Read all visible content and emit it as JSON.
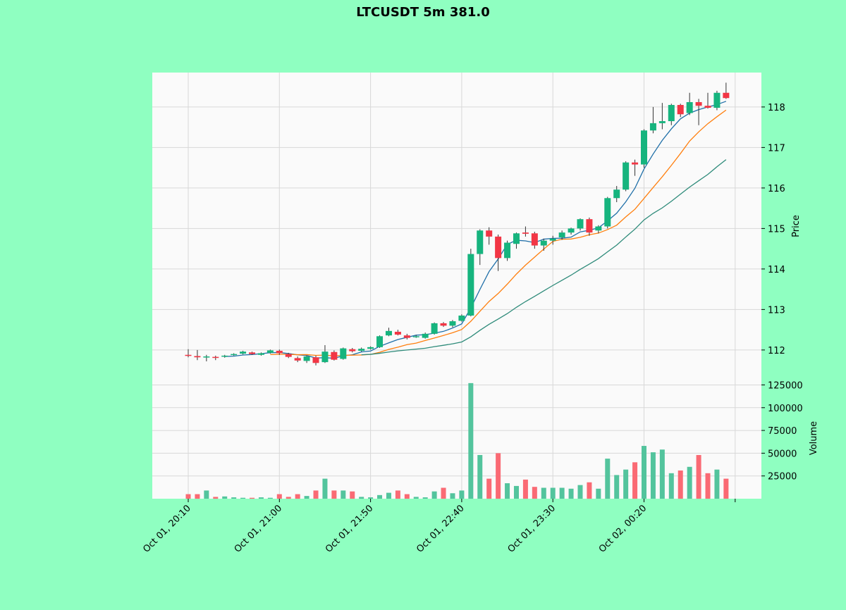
{
  "chart_data": {
    "type": "candlestick",
    "title": "LTCUSDT 5m 381.0",
    "ylabel": "Price",
    "ylabel_lower": "Volume",
    "ylim": [
      111.25,
      118.85
    ],
    "volume_ylim": [
      0,
      130000
    ],
    "grid": true,
    "colors": {
      "up": "#16b47e",
      "down": "#f23645",
      "up_volume": "#53c49d",
      "down_volume": "#fa6a74",
      "background": "#8fffc1",
      "plot_bg": "#fafafa",
      "mav": [
        "#1f6fa8",
        "#ff7f0e",
        "#2e8b7a"
      ]
    },
    "mav": [
      5,
      10,
      20
    ],
    "x_ticks": [
      {
        "index": 0,
        "label": "Oct 01, 20:10"
      },
      {
        "index": 10,
        "label": "Oct 01, 21:00"
      },
      {
        "index": 20,
        "label": "Oct 01, 21:50"
      },
      {
        "index": 30,
        "label": "Oct 01, 22:40"
      },
      {
        "index": 40,
        "label": "Oct 01, 23:30"
      },
      {
        "index": 50,
        "label": "Oct 02, 00:20"
      },
      {
        "index": 60,
        "label": ""
      }
    ],
    "y_ticks": [
      "112",
      "113",
      "114",
      "115",
      "116",
      "117",
      "118"
    ],
    "volume_ticks": [
      "25000",
      "50000",
      "75000",
      "100000",
      "125000"
    ],
    "candles": [
      [
        111.88,
        112.02,
        111.82,
        111.86,
        5000
      ],
      [
        111.85,
        112.0,
        111.75,
        111.82,
        5000
      ],
      [
        111.82,
        111.88,
        111.72,
        111.84,
        9000
      ],
      [
        111.83,
        111.86,
        111.75,
        111.82,
        2000
      ],
      [
        111.84,
        111.88,
        111.81,
        111.86,
        2500
      ],
      [
        111.88,
        111.92,
        111.86,
        111.9,
        1500
      ],
      [
        111.91,
        111.98,
        111.89,
        111.96,
        1000
      ],
      [
        111.94,
        111.96,
        111.88,
        111.9,
        1000
      ],
      [
        111.88,
        111.94,
        111.86,
        111.92,
        1500
      ],
      [
        111.93,
        112.01,
        111.91,
        111.99,
        1000
      ],
      [
        111.98,
        112.01,
        111.88,
        111.92,
        5000
      ],
      [
        111.9,
        111.93,
        111.8,
        111.83,
        2000
      ],
      [
        111.8,
        111.84,
        111.7,
        111.74,
        5000
      ],
      [
        111.73,
        111.86,
        111.68,
        111.84,
        3000
      ],
      [
        111.82,
        111.86,
        111.62,
        111.68,
        9000
      ],
      [
        111.7,
        112.12,
        111.68,
        111.96,
        22000
      ],
      [
        111.95,
        111.99,
        111.74,
        111.76,
        9000
      ],
      [
        111.78,
        112.06,
        111.76,
        112.04,
        9000
      ],
      [
        112.02,
        112.05,
        111.94,
        111.97,
        8000
      ],
      [
        111.98,
        112.06,
        111.96,
        112.03,
        2000
      ],
      [
        112.03,
        112.09,
        112.01,
        112.07,
        1500
      ],
      [
        112.07,
        112.36,
        112.05,
        112.34,
        4000
      ],
      [
        112.36,
        112.55,
        112.34,
        112.47,
        6500
      ],
      [
        112.45,
        112.5,
        112.36,
        112.38,
        9000
      ],
      [
        112.36,
        112.4,
        112.26,
        112.3,
        5000
      ],
      [
        112.33,
        112.37,
        112.3,
        112.34,
        2000
      ],
      [
        112.3,
        112.43,
        112.28,
        112.4,
        1500
      ],
      [
        112.4,
        112.68,
        112.38,
        112.66,
        8000
      ],
      [
        112.66,
        112.69,
        112.57,
        112.6,
        12000
      ],
      [
        112.6,
        112.74,
        112.56,
        112.71,
        6000
      ],
      [
        112.72,
        112.88,
        112.7,
        112.85,
        9000
      ],
      [
        112.85,
        114.5,
        112.83,
        114.37,
        127000
      ],
      [
        114.37,
        114.98,
        114.1,
        114.95,
        48000
      ],
      [
        114.95,
        115.03,
        114.6,
        114.8,
        22000
      ],
      [
        114.8,
        114.85,
        113.95,
        114.27,
        50000
      ],
      [
        114.27,
        114.7,
        114.2,
        114.65,
        17000
      ],
      [
        114.62,
        114.9,
        114.5,
        114.88,
        14000
      ],
      [
        114.9,
        115.05,
        114.8,
        114.87,
        21000
      ],
      [
        114.88,
        114.92,
        114.5,
        114.58,
        13000
      ],
      [
        114.58,
        114.75,
        114.45,
        114.7,
        12000
      ],
      [
        114.7,
        114.82,
        114.6,
        114.75,
        12000
      ],
      [
        114.78,
        114.95,
        114.72,
        114.9,
        12000
      ],
      [
        114.9,
        115.02,
        114.85,
        115.0,
        11000
      ],
      [
        115.0,
        115.25,
        114.95,
        115.23,
        15000
      ],
      [
        115.23,
        115.27,
        114.82,
        114.9,
        18000
      ],
      [
        114.95,
        115.08,
        114.88,
        115.05,
        11000
      ],
      [
        115.05,
        115.78,
        115.0,
        115.75,
        44000
      ],
      [
        115.75,
        116.05,
        115.65,
        115.96,
        26000
      ],
      [
        115.96,
        116.66,
        115.92,
        116.63,
        32000
      ],
      [
        116.63,
        116.7,
        116.3,
        116.58,
        40000
      ],
      [
        116.58,
        117.45,
        116.5,
        117.42,
        58000
      ],
      [
        117.42,
        118.0,
        117.35,
        117.6,
        51000
      ],
      [
        117.6,
        118.1,
        117.45,
        117.65,
        54000
      ],
      [
        117.65,
        118.08,
        117.55,
        118.05,
        28000
      ],
      [
        118.05,
        118.08,
        117.75,
        117.82,
        31000
      ],
      [
        117.85,
        118.35,
        117.8,
        118.12,
        35000
      ],
      [
        118.12,
        118.2,
        117.55,
        118.03,
        48000
      ],
      [
        118.03,
        118.35,
        117.96,
        117.98,
        28000
      ],
      [
        117.98,
        118.4,
        117.92,
        118.35,
        32000
      ],
      [
        118.35,
        118.6,
        118.2,
        118.22,
        22000
      ]
    ]
  }
}
